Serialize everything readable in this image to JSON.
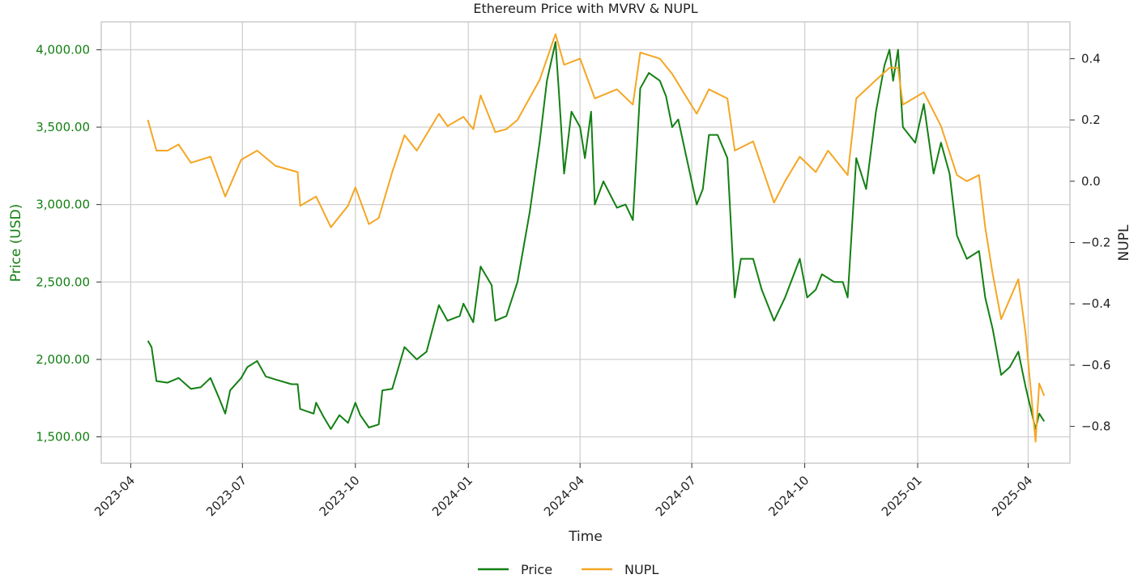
{
  "chart_data": {
    "type": "line",
    "title": "Ethereum Price with MVRV & NUPL",
    "xlabel": "Time",
    "ylabel": "Price (USD)",
    "y2label": "NUPL",
    "ylim": [
      1330,
      4180
    ],
    "y2lim": [
      -0.92,
      0.52
    ],
    "xlim": [
      "2023-03-08",
      "2025-05-05"
    ],
    "grid": true,
    "legend_placement": "bottom-center",
    "x_ticks": [
      "2023-04",
      "2023-07",
      "2023-10",
      "2024-01",
      "2024-04",
      "2024-07",
      "2024-10",
      "2025-01",
      "2025-04"
    ],
    "y_ticks": [
      1500,
      2000,
      2500,
      3000,
      3500,
      4000
    ],
    "y_tick_labels": [
      "1,500.00",
      "2,000.00",
      "2,500.00",
      "3,000.00",
      "3,500.00",
      "4,000.00"
    ],
    "y2_ticks": [
      -0.8,
      -0.6,
      -0.4,
      -0.2,
      0.0,
      0.2,
      0.4
    ],
    "y2_tick_labels": [
      "−0.8",
      "−0.6",
      "−0.4",
      "−0.2",
      "0.0",
      "0.2",
      "0.4"
    ],
    "series": [
      {
        "name": "Price",
        "axis": "left",
        "color": "#138013",
        "points": [
          [
            "2023-04-15",
            2120
          ],
          [
            "2023-04-18",
            2080
          ],
          [
            "2023-04-22",
            1860
          ],
          [
            "2023-05-01",
            1850
          ],
          [
            "2023-05-10",
            1880
          ],
          [
            "2023-05-20",
            1810
          ],
          [
            "2023-05-28",
            1820
          ],
          [
            "2023-06-05",
            1880
          ],
          [
            "2023-06-12",
            1750
          ],
          [
            "2023-06-17",
            1650
          ],
          [
            "2023-06-21",
            1800
          ],
          [
            "2023-06-30",
            1880
          ],
          [
            "2023-07-05",
            1950
          ],
          [
            "2023-07-13",
            1990
          ],
          [
            "2023-07-20",
            1890
          ],
          [
            "2023-07-28",
            1870
          ],
          [
            "2023-08-10",
            1840
          ],
          [
            "2023-08-15",
            1840
          ],
          [
            "2023-08-17",
            1680
          ],
          [
            "2023-08-28",
            1650
          ],
          [
            "2023-08-30",
            1720
          ],
          [
            "2023-09-05",
            1630
          ],
          [
            "2023-09-11",
            1550
          ],
          [
            "2023-09-18",
            1640
          ],
          [
            "2023-09-25",
            1590
          ],
          [
            "2023-10-01",
            1720
          ],
          [
            "2023-10-05",
            1640
          ],
          [
            "2023-10-12",
            1560
          ],
          [
            "2023-10-20",
            1580
          ],
          [
            "2023-10-23",
            1800
          ],
          [
            "2023-10-31",
            1810
          ],
          [
            "2023-11-10",
            2080
          ],
          [
            "2023-11-20",
            2000
          ],
          [
            "2023-11-28",
            2050
          ],
          [
            "2023-12-08",
            2350
          ],
          [
            "2023-12-15",
            2250
          ],
          [
            "2023-12-25",
            2280
          ],
          [
            "2023-12-28",
            2360
          ],
          [
            "2024-01-05",
            2240
          ],
          [
            "2024-01-11",
            2600
          ],
          [
            "2024-01-20",
            2480
          ],
          [
            "2024-01-23",
            2250
          ],
          [
            "2024-02-01",
            2280
          ],
          [
            "2024-02-10",
            2500
          ],
          [
            "2024-02-20",
            2950
          ],
          [
            "2024-02-28",
            3400
          ],
          [
            "2024-03-05",
            3800
          ],
          [
            "2024-03-12",
            4050
          ],
          [
            "2024-03-15",
            3700
          ],
          [
            "2024-03-19",
            3200
          ],
          [
            "2024-03-25",
            3600
          ],
          [
            "2024-04-01",
            3500
          ],
          [
            "2024-04-05",
            3300
          ],
          [
            "2024-04-10",
            3600
          ],
          [
            "2024-04-13",
            3000
          ],
          [
            "2024-04-20",
            3150
          ],
          [
            "2024-05-01",
            2980
          ],
          [
            "2024-05-08",
            3000
          ],
          [
            "2024-05-14",
            2900
          ],
          [
            "2024-05-20",
            3750
          ],
          [
            "2024-05-27",
            3850
          ],
          [
            "2024-06-05",
            3800
          ],
          [
            "2024-06-10",
            3700
          ],
          [
            "2024-06-15",
            3500
          ],
          [
            "2024-06-20",
            3550
          ],
          [
            "2024-07-05",
            3000
          ],
          [
            "2024-07-10",
            3100
          ],
          [
            "2024-07-15",
            3450
          ],
          [
            "2024-07-22",
            3450
          ],
          [
            "2024-07-30",
            3300
          ],
          [
            "2024-08-05",
            2400
          ],
          [
            "2024-08-10",
            2650
          ],
          [
            "2024-08-20",
            2650
          ],
          [
            "2024-08-27",
            2450
          ],
          [
            "2024-09-06",
            2250
          ],
          [
            "2024-09-15",
            2400
          ],
          [
            "2024-09-27",
            2650
          ],
          [
            "2024-10-03",
            2400
          ],
          [
            "2024-10-10",
            2450
          ],
          [
            "2024-10-15",
            2550
          ],
          [
            "2024-10-25",
            2500
          ],
          [
            "2024-11-01",
            2500
          ],
          [
            "2024-11-05",
            2400
          ],
          [
            "2024-11-12",
            3300
          ],
          [
            "2024-11-20",
            3100
          ],
          [
            "2024-11-28",
            3600
          ],
          [
            "2024-12-05",
            3900
          ],
          [
            "2024-12-09",
            4000
          ],
          [
            "2024-12-12",
            3800
          ],
          [
            "2024-12-16",
            4000
          ],
          [
            "2024-12-20",
            3500
          ],
          [
            "2024-12-30",
            3400
          ],
          [
            "2025-01-06",
            3650
          ],
          [
            "2025-01-14",
            3200
          ],
          [
            "2025-01-20",
            3400
          ],
          [
            "2025-01-27",
            3200
          ],
          [
            "2025-02-02",
            2800
          ],
          [
            "2025-02-10",
            2650
          ],
          [
            "2025-02-20",
            2700
          ],
          [
            "2025-02-25",
            2400
          ],
          [
            "2025-03-03",
            2200
          ],
          [
            "2025-03-10",
            1900
          ],
          [
            "2025-03-17",
            1950
          ],
          [
            "2025-03-24",
            2050
          ],
          [
            "2025-03-30",
            1820
          ],
          [
            "2025-04-07",
            1550
          ],
          [
            "2025-04-10",
            1650
          ],
          [
            "2025-04-14",
            1600
          ]
        ]
      },
      {
        "name": "NUPL",
        "axis": "right",
        "color": "#f5a623",
        "points": [
          [
            "2023-04-15",
            0.2
          ],
          [
            "2023-04-22",
            0.1
          ],
          [
            "2023-05-01",
            0.1
          ],
          [
            "2023-05-10",
            0.12
          ],
          [
            "2023-05-20",
            0.06
          ],
          [
            "2023-06-05",
            0.08
          ],
          [
            "2023-06-17",
            -0.05
          ],
          [
            "2023-06-30",
            0.07
          ],
          [
            "2023-07-13",
            0.1
          ],
          [
            "2023-07-28",
            0.05
          ],
          [
            "2023-08-15",
            0.03
          ],
          [
            "2023-08-17",
            -0.08
          ],
          [
            "2023-08-30",
            -0.05
          ],
          [
            "2023-09-11",
            -0.15
          ],
          [
            "2023-09-25",
            -0.08
          ],
          [
            "2023-10-01",
            -0.02
          ],
          [
            "2023-10-12",
            -0.14
          ],
          [
            "2023-10-20",
            -0.12
          ],
          [
            "2023-10-31",
            0.03
          ],
          [
            "2023-11-10",
            0.15
          ],
          [
            "2023-11-20",
            0.1
          ],
          [
            "2023-12-08",
            0.22
          ],
          [
            "2023-12-15",
            0.18
          ],
          [
            "2023-12-28",
            0.21
          ],
          [
            "2024-01-05",
            0.17
          ],
          [
            "2024-01-11",
            0.28
          ],
          [
            "2024-01-23",
            0.16
          ],
          [
            "2024-02-01",
            0.17
          ],
          [
            "2024-02-10",
            0.2
          ],
          [
            "2024-02-28",
            0.33
          ],
          [
            "2024-03-12",
            0.48
          ],
          [
            "2024-03-19",
            0.38
          ],
          [
            "2024-04-01",
            0.4
          ],
          [
            "2024-04-13",
            0.27
          ],
          [
            "2024-05-01",
            0.3
          ],
          [
            "2024-05-14",
            0.25
          ],
          [
            "2024-05-20",
            0.42
          ],
          [
            "2024-06-05",
            0.4
          ],
          [
            "2024-06-15",
            0.35
          ],
          [
            "2024-07-05",
            0.22
          ],
          [
            "2024-07-15",
            0.3
          ],
          [
            "2024-07-30",
            0.27
          ],
          [
            "2024-08-05",
            0.1
          ],
          [
            "2024-08-20",
            0.13
          ],
          [
            "2024-09-06",
            -0.07
          ],
          [
            "2024-09-15",
            0.0
          ],
          [
            "2024-09-27",
            0.08
          ],
          [
            "2024-10-10",
            0.03
          ],
          [
            "2024-10-20",
            0.1
          ],
          [
            "2024-11-05",
            0.02
          ],
          [
            "2024-11-12",
            0.27
          ],
          [
            "2024-11-28",
            0.33
          ],
          [
            "2024-12-09",
            0.37
          ],
          [
            "2024-12-16",
            0.37
          ],
          [
            "2024-12-20",
            0.25
          ],
          [
            "2025-01-06",
            0.29
          ],
          [
            "2025-01-20",
            0.18
          ],
          [
            "2025-02-02",
            0.02
          ],
          [
            "2025-02-10",
            0.0
          ],
          [
            "2025-02-20",
            0.02
          ],
          [
            "2025-02-25",
            -0.15
          ],
          [
            "2025-03-03",
            -0.3
          ],
          [
            "2025-03-10",
            -0.45
          ],
          [
            "2025-03-24",
            -0.32
          ],
          [
            "2025-03-30",
            -0.5
          ],
          [
            "2025-04-07",
            -0.85
          ],
          [
            "2025-04-10",
            -0.66
          ],
          [
            "2025-04-14",
            -0.7
          ]
        ]
      }
    ]
  }
}
